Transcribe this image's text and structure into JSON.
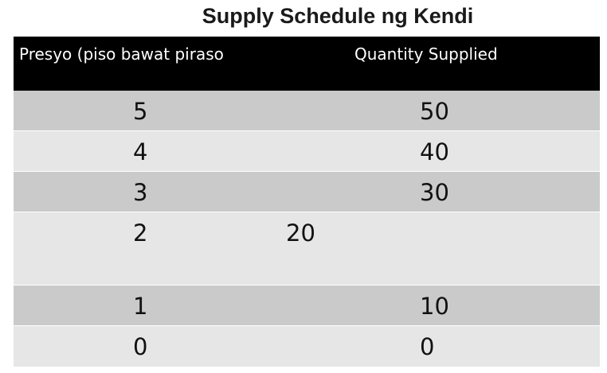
{
  "title": "Supply Schedule ng Kendi",
  "table": {
    "headers": {
      "price": "Presyo (piso bawat piraso",
      "quantity": "Quantity Supplied"
    },
    "rows": [
      {
        "price": "5",
        "quantity": "50"
      },
      {
        "price": "4",
        "quantity": "40"
      },
      {
        "price": "3",
        "quantity": "30"
      },
      {
        "price": "2",
        "quantity": "20"
      },
      {
        "price": "1",
        "quantity": "10"
      },
      {
        "price": "0",
        "quantity": "0"
      }
    ]
  },
  "colors": {
    "header_bg": "#000000",
    "row_dark": "#cbcacb",
    "row_light": "#e7e6e7"
  }
}
